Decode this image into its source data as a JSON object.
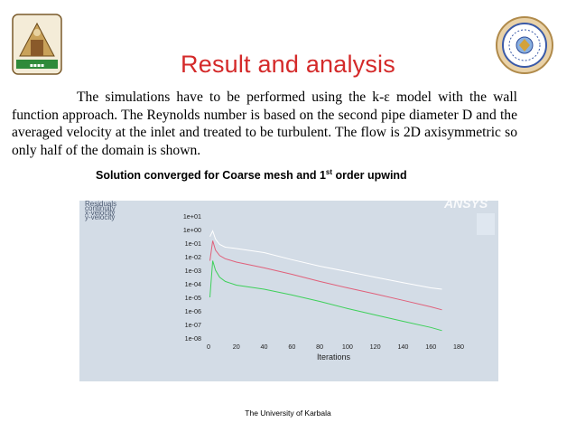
{
  "slide": {
    "title": "Result and analysis",
    "paragraph": "The simulations have to be performed using the k-ε model with the wall function approach. The Reynolds number is based on the second pipe diameter D and the averaged velocity at the inlet and treated to be turbulent. The flow is 2D axisymmetric so only half of the domain is shown.",
    "caption_main": "Solution converged for Coarse mesh and 1",
    "caption_sup": "st",
    "caption_tail": " order upwind",
    "footer": "The University of Karbala"
  },
  "logos": {
    "left": "university-of-karbala-logo",
    "right": "college-seal-logo"
  },
  "colors": {
    "title": "#d42a2a",
    "plot_background": "#d3dce6",
    "continuity": "#ffffff",
    "u_velocity": "#e0607a",
    "v_velocity": "#3ed05a"
  },
  "chart_data": {
    "type": "line",
    "xlabel": "Iterations",
    "ylabel": "",
    "xlim": [
      0,
      180
    ],
    "ylim_log10": [
      -8,
      1
    ],
    "y_scale": "log",
    "x_ticks": [
      "0",
      "20",
      "40",
      "60",
      "80",
      "100",
      "120",
      "140",
      "160",
      "180"
    ],
    "y_ticks": [
      "1e+01",
      "1e+00",
      "1e-01",
      "1e-02",
      "1e-03",
      "1e-04",
      "1e-05",
      "1e-06",
      "1e-07",
      "1e-08"
    ],
    "legend_title": "Residuals",
    "legend_position": "top-left",
    "watermark": "ANSYS",
    "series": [
      {
        "name": "continuity",
        "color": "#ffffff",
        "x": [
          1,
          3,
          5,
          8,
          12,
          20,
          40,
          60,
          80,
          100,
          120,
          140,
          160,
          168
        ],
        "y": [
          0.3,
          0.8,
          0.2,
          0.08,
          0.05,
          0.04,
          0.02,
          0.006,
          0.002,
          0.0008,
          0.0003,
          0.00012,
          5e-05,
          4e-05
        ]
      },
      {
        "name": "x-velocity",
        "color": "#e0607a",
        "x": [
          1,
          3,
          5,
          8,
          12,
          20,
          40,
          60,
          80,
          100,
          120,
          140,
          160,
          168
        ],
        "y": [
          0.005,
          0.15,
          0.03,
          0.012,
          0.007,
          0.004,
          0.0015,
          0.0005,
          0.00015,
          5e-05,
          1.8e-05,
          6e-06,
          2e-06,
          1.2e-06
        ]
      },
      {
        "name": "y-velocity",
        "color": "#3ed05a",
        "x": [
          1,
          3,
          5,
          8,
          12,
          20,
          40,
          60,
          80,
          100,
          120,
          140,
          160,
          168
        ],
        "y": [
          1e-05,
          0.005,
          0.001,
          0.0003,
          0.00015,
          8e-05,
          4e-05,
          1.5e-05,
          5e-06,
          1.5e-06,
          5e-07,
          1.7e-07,
          6e-08,
          3.5e-08
        ]
      }
    ]
  }
}
